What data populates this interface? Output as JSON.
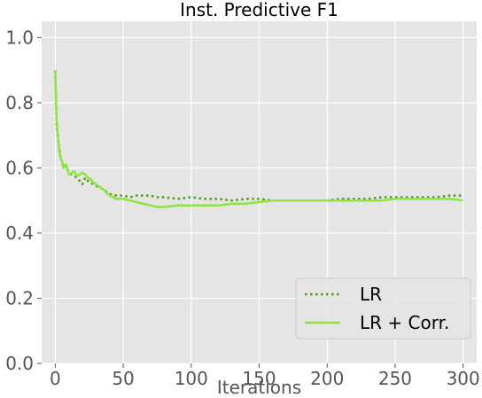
{
  "chart_data": {
    "type": "line",
    "title": "Inst. Predictive F1",
    "xlabel": "Iterations",
    "ylabel": "",
    "xlim": [
      -10,
      310
    ],
    "ylim": [
      0.0,
      1.05
    ],
    "x_ticks": [
      0,
      50,
      100,
      150,
      200,
      250,
      300
    ],
    "x_tick_labels": [
      "0",
      "50",
      "100",
      "150",
      "200",
      "250",
      "300"
    ],
    "y_ticks": [
      0.0,
      0.2,
      0.4,
      0.6,
      0.8,
      1.0
    ],
    "y_tick_labels": [
      "0.0",
      "0.2",
      "0.4",
      "0.6",
      "0.8",
      "1.0"
    ],
    "grid": true,
    "legend_position": "bottom-right",
    "background_color": "#e5e5e5",
    "series": [
      {
        "name": "LR",
        "color": "#4f9a0f",
        "style": "dotted",
        "x": [
          0,
          1,
          2,
          3,
          4,
          5,
          6,
          8,
          10,
          12,
          14,
          16,
          18,
          20,
          22,
          24,
          26,
          28,
          30,
          35,
          40,
          45,
          50,
          55,
          60,
          65,
          70,
          75,
          80,
          90,
          100,
          110,
          120,
          130,
          140,
          150,
          160,
          170,
          180,
          190,
          200,
          210,
          220,
          230,
          240,
          250,
          260,
          270,
          280,
          290,
          300
        ],
        "y": [
          0.9,
          0.73,
          0.69,
          0.66,
          0.63,
          0.62,
          0.61,
          0.6,
          0.59,
          0.58,
          0.575,
          0.57,
          0.56,
          0.55,
          0.57,
          0.56,
          0.555,
          0.55,
          0.545,
          0.535,
          0.52,
          0.515,
          0.515,
          0.51,
          0.515,
          0.515,
          0.515,
          0.51,
          0.51,
          0.505,
          0.51,
          0.505,
          0.505,
          0.5,
          0.505,
          0.505,
          0.5,
          0.5,
          0.5,
          0.5,
          0.5,
          0.505,
          0.505,
          0.505,
          0.51,
          0.51,
          0.51,
          0.51,
          0.51,
          0.515,
          0.515
        ]
      },
      {
        "name": "LR + Corr.",
        "color": "#8ee53f",
        "style": "solid",
        "x": [
          0,
          1,
          2,
          3,
          4,
          5,
          6,
          8,
          10,
          12,
          14,
          16,
          18,
          20,
          22,
          24,
          26,
          28,
          30,
          35,
          40,
          45,
          50,
          55,
          60,
          65,
          70,
          75,
          80,
          90,
          100,
          110,
          120,
          130,
          140,
          150,
          160,
          170,
          180,
          190,
          200,
          210,
          220,
          230,
          240,
          250,
          260,
          270,
          280,
          290,
          300
        ],
        "y": [
          0.9,
          0.75,
          0.7,
          0.65,
          0.63,
          0.62,
          0.6,
          0.61,
          0.58,
          0.585,
          0.59,
          0.575,
          0.58,
          0.585,
          0.58,
          0.57,
          0.565,
          0.555,
          0.55,
          0.535,
          0.515,
          0.505,
          0.505,
          0.5,
          0.495,
          0.49,
          0.485,
          0.48,
          0.48,
          0.485,
          0.485,
          0.485,
          0.485,
          0.49,
          0.49,
          0.495,
          0.5,
          0.5,
          0.5,
          0.5,
          0.5,
          0.5,
          0.5,
          0.5,
          0.5,
          0.505,
          0.505,
          0.505,
          0.505,
          0.505,
          0.5
        ]
      }
    ]
  }
}
